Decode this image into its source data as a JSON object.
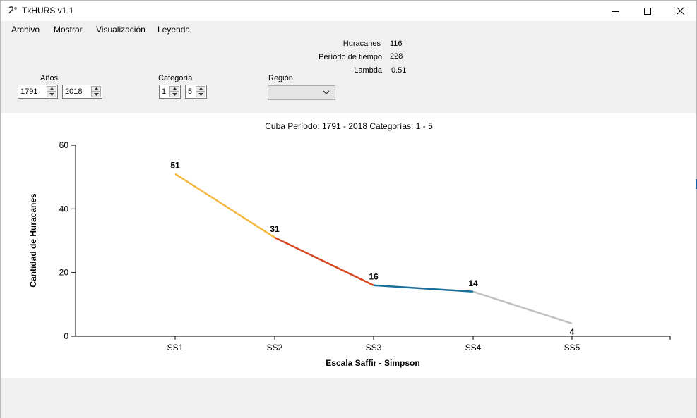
{
  "window": {
    "title": "TkHURS v1.1"
  },
  "menu": {
    "items": [
      {
        "label": "Archivo"
      },
      {
        "label": "Mostrar"
      },
      {
        "label": "Visualización"
      },
      {
        "label": "Leyenda"
      }
    ]
  },
  "stats": {
    "huracanes_label": "Huracanes",
    "huracanes_value": "116",
    "periodo_label": "Período de tiempo",
    "periodo_value": "228",
    "lambda_label": "Lambda",
    "lambda_value": "0.51"
  },
  "filters": {
    "anos_label": "Años",
    "year_from": "1791",
    "year_to": "2018",
    "categoria_label": "Categoría",
    "cat_from": "1",
    "cat_to": "5",
    "region_label": "Región",
    "region_value": ""
  },
  "chart_data": {
    "type": "line",
    "title": "Cuba Período: 1791 - 2018 Categorías: 1 - 5",
    "xlabel": "Escala Saffir - Simpson",
    "ylabel": "Cantidad de Huracanes",
    "categories": [
      "SS1",
      "SS2",
      "SS3",
      "SS4",
      "SS5"
    ],
    "values": [
      51,
      31,
      16,
      14,
      4
    ],
    "segment_colors": [
      "#f4b942",
      "#d5471e",
      "#1a6e9a",
      "#c0c0c0"
    ],
    "ylim": [
      0,
      60
    ],
    "yticks": [
      0,
      20,
      40,
      60
    ],
    "grid": false
  }
}
